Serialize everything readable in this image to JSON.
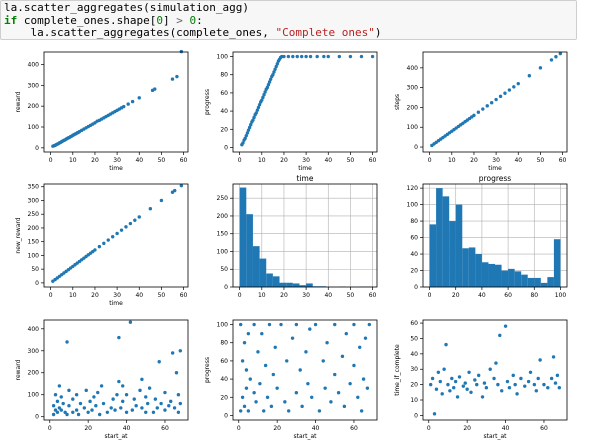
{
  "code": {
    "line1": "la.scatter_aggregates(simulation_agg)",
    "line2_kw": "if",
    "line2_a": " complete_ones.shape[",
    "line2_num": "0",
    "line2_b": "] ",
    "line2_op": ">",
    "line2_c": " ",
    "line2_num2": "0",
    "line2_d": ":",
    "line3_a": "    la.scatter_aggregates(complete_ones, ",
    "line3_str": "\"Complete ones\"",
    "line3_b": ")"
  },
  "colors": {
    "marker": "#1f77b4",
    "axis": "#000000",
    "grid": "#b0b0b0"
  },
  "chart_data": [
    {
      "type": "scatter",
      "title": "",
      "xlabel": "time",
      "ylabel": "reward",
      "xlim": [
        -3,
        62
      ],
      "ylim": [
        -20,
        460
      ],
      "xticks": [
        0,
        10,
        20,
        30,
        40,
        50,
        60
      ],
      "yticks": [
        0,
        100,
        200,
        300,
        400
      ],
      "x": [
        1,
        1.5,
        2,
        2.5,
        3,
        3.5,
        4,
        4.5,
        5,
        5.5,
        6,
        6.5,
        7,
        7.5,
        8,
        8.5,
        9,
        9.5,
        10,
        10.5,
        11,
        11.5,
        12,
        12.5,
        13,
        14,
        15,
        16,
        17,
        18,
        19,
        20,
        21,
        22,
        23,
        24,
        25,
        26,
        27,
        28,
        29,
        30,
        31,
        32,
        33,
        35,
        37,
        40,
        46,
        47,
        55,
        57,
        59
      ],
      "y": [
        8,
        10,
        12,
        15,
        18,
        20,
        24,
        26,
        30,
        33,
        36,
        38,
        42,
        45,
        48,
        50,
        54,
        56,
        60,
        63,
        66,
        68,
        72,
        74,
        78,
        84,
        90,
        96,
        102,
        108,
        114,
        120,
        128,
        132,
        138,
        144,
        150,
        156,
        162,
        168,
        174,
        180,
        186,
        192,
        198,
        210,
        222,
        240,
        276,
        282,
        330,
        342,
        462
      ]
    },
    {
      "type": "scatter",
      "title": "",
      "xlabel": "time",
      "ylabel": "progress",
      "xlim": [
        -3,
        62
      ],
      "ylim": [
        -5,
        105
      ],
      "xticks": [
        0,
        10,
        20,
        30,
        40,
        50,
        60
      ],
      "yticks": [
        0,
        20,
        40,
        60,
        80,
        100
      ],
      "x": [
        1,
        1.5,
        2,
        2.5,
        3,
        3.5,
        4,
        4.5,
        5,
        5.5,
        6,
        6.5,
        7,
        7.5,
        8,
        8.5,
        9,
        9.5,
        10,
        10.5,
        11,
        11.5,
        12,
        12.5,
        13,
        13.5,
        14,
        14.5,
        15,
        15.5,
        16,
        16.5,
        17,
        17.5,
        18,
        18.5,
        19,
        20,
        22,
        24,
        26,
        28,
        30,
        32,
        35,
        38,
        40,
        45,
        50,
        55,
        60
      ],
      "y": [
        3,
        5,
        8,
        10,
        13,
        16,
        19,
        22,
        25,
        28,
        30,
        33,
        36,
        38,
        41,
        44,
        47,
        50,
        52,
        55,
        58,
        61,
        64,
        66,
        69,
        72,
        75,
        78,
        80,
        83,
        86,
        89,
        92,
        95,
        97,
        99,
        100,
        100,
        100,
        100,
        100,
        100,
        100,
        100,
        100,
        100,
        100,
        100,
        100,
        100,
        100
      ]
    },
    {
      "type": "scatter",
      "title": "",
      "xlabel": "time",
      "ylabel": "steps",
      "xlim": [
        -3,
        62
      ],
      "ylim": [
        -25,
        480
      ],
      "xticks": [
        0,
        10,
        20,
        30,
        40,
        50,
        60
      ],
      "yticks": [
        0,
        100,
        200,
        300,
        400
      ],
      "x": [
        1,
        2,
        3,
        4,
        5,
        6,
        7,
        8,
        9,
        10,
        11,
        12,
        13,
        14,
        15,
        16,
        17,
        18,
        19,
        20,
        22,
        24,
        26,
        28,
        30,
        32,
        34,
        36,
        38,
        40,
        45,
        50,
        55,
        57,
        59
      ],
      "y": [
        8,
        16,
        24,
        32,
        40,
        48,
        56,
        64,
        72,
        80,
        88,
        96,
        104,
        112,
        120,
        128,
        136,
        144,
        152,
        160,
        176,
        192,
        208,
        224,
        240,
        256,
        272,
        288,
        304,
        320,
        360,
        400,
        440,
        456,
        472
      ]
    },
    {
      "type": "scatter",
      "title": "",
      "xlabel": "time",
      "ylabel": "new_reward",
      "xlim": [
        -3,
        62
      ],
      "ylim": [
        -15,
        360
      ],
      "xticks": [
        0,
        10,
        20,
        30,
        40,
        50,
        60
      ],
      "yticks": [
        0,
        50,
        100,
        150,
        200,
        250,
        300,
        350
      ],
      "x": [
        1,
        2,
        3,
        4,
        5,
        6,
        7,
        8,
        9,
        10,
        11,
        12,
        13,
        14,
        15,
        16,
        17,
        18,
        19,
        20,
        22,
        24,
        26,
        28,
        30,
        32,
        34,
        36,
        38,
        40,
        45,
        50,
        55,
        56,
        59
      ],
      "y": [
        6,
        12,
        18,
        24,
        30,
        36,
        42,
        48,
        54,
        60,
        66,
        72,
        78,
        84,
        90,
        96,
        102,
        108,
        114,
        120,
        132,
        144,
        156,
        168,
        180,
        192,
        204,
        216,
        228,
        240,
        270,
        300,
        330,
        336,
        354
      ]
    },
    {
      "type": "bar",
      "title": "time",
      "xlabel": "",
      "ylabel": "",
      "xlim": [
        -3,
        62
      ],
      "ylim": [
        0,
        290
      ],
      "xticks": [
        0,
        10,
        20,
        30,
        40,
        50,
        60
      ],
      "yticks": [
        0,
        50,
        100,
        150,
        200,
        250
      ],
      "bin_edges": [
        0,
        3,
        6,
        9,
        12,
        15,
        18,
        21,
        24,
        27,
        30,
        33,
        36,
        39,
        42,
        45,
        48,
        51,
        54,
        57,
        60
      ],
      "values": [
        280,
        205,
        115,
        80,
        38,
        30,
        12,
        12,
        10,
        5,
        10,
        2,
        2,
        0,
        0,
        1,
        0,
        0,
        1,
        1
      ]
    },
    {
      "type": "bar",
      "title": "progress",
      "xlabel": "",
      "ylabel": "",
      "xlim": [
        -5,
        105
      ],
      "ylim": [
        0,
        125
      ],
      "xticks": [
        0,
        20,
        40,
        60,
        80,
        100
      ],
      "yticks": [
        0,
        20,
        40,
        60,
        80,
        100,
        120
      ],
      "bin_edges": [
        0,
        5,
        10,
        15,
        20,
        25,
        30,
        35,
        40,
        45,
        50,
        55,
        60,
        65,
        70,
        75,
        80,
        85,
        90,
        95,
        100
      ],
      "values": [
        76,
        120,
        110,
        80,
        100,
        47,
        48,
        40,
        30,
        28,
        27,
        20,
        22,
        19,
        15,
        11,
        11,
        5,
        12,
        58
      ]
    },
    {
      "type": "scatter",
      "title": "",
      "xlabel": "start_at",
      "ylabel": "reward",
      "xlim": [
        -3,
        72
      ],
      "ylim": [
        -15,
        440
      ],
      "xticks": [
        0,
        20,
        40,
        60
      ],
      "yticks": [
        0,
        100,
        200,
        300,
        400
      ],
      "x": [
        2,
        2,
        3,
        3,
        4,
        4,
        5,
        5,
        6,
        6,
        7,
        8,
        9,
        9,
        10,
        10,
        12,
        12,
        14,
        14,
        15,
        16,
        18,
        19,
        20,
        21,
        22,
        23,
        24,
        25,
        26,
        27,
        28,
        30,
        32,
        33,
        34,
        35,
        36,
        36,
        37,
        38,
        38,
        40,
        40,
        42,
        43,
        44,
        45,
        47,
        48,
        48,
        50,
        50,
        51,
        52,
        54,
        55,
        56,
        57,
        58,
        60,
        60,
        62,
        63,
        64,
        65,
        66,
        67,
        67,
        68,
        68
      ],
      "y": [
        10,
        50,
        30,
        100,
        20,
        70,
        140,
        40,
        30,
        90,
        60,
        20,
        10,
        340,
        50,
        120,
        20,
        80,
        30,
        100,
        10,
        60,
        40,
        120,
        20,
        70,
        30,
        90,
        50,
        110,
        10,
        140,
        60,
        20,
        40,
        80,
        30,
        100,
        160,
        360,
        40,
        140,
        70,
        20,
        100,
        430,
        30,
        80,
        50,
        120,
        40,
        170,
        20,
        90,
        60,
        130,
        20,
        80,
        40,
        250,
        60,
        30,
        110,
        50,
        70,
        290,
        40,
        200,
        20,
        100,
        300,
        60
      ]
    },
    {
      "type": "scatter",
      "title": "",
      "xlabel": "start_at",
      "ylabel": "progress",
      "xlim": [
        -3,
        72
      ],
      "ylim": [
        -5,
        105
      ],
      "xticks": [
        0,
        20,
        40,
        60
      ],
      "yticks": [
        0,
        20,
        40,
        60,
        80,
        100
      ],
      "x": [
        1,
        1,
        2,
        2,
        3,
        3,
        4,
        4,
        5,
        5,
        6,
        8,
        8,
        9,
        10,
        11,
        12,
        13,
        14,
        15,
        16,
        17,
        18,
        19,
        20,
        22,
        24,
        25,
        26,
        28,
        30,
        30,
        32,
        33,
        35,
        36,
        37,
        38,
        40,
        42,
        44,
        45,
        46,
        48,
        50,
        50,
        52,
        54,
        55,
        56,
        58,
        60,
        60,
        62,
        63,
        64,
        65,
        66,
        67,
        68
      ],
      "y": [
        5,
        100,
        20,
        60,
        10,
        80,
        30,
        50,
        5,
        90,
        40,
        25,
        100,
        15,
        70,
        35,
        90,
        5,
        55,
        20,
        100,
        10,
        45,
        75,
        30,
        100,
        15,
        60,
        5,
        85,
        25,
        100,
        50,
        10,
        70,
        35,
        95,
        20,
        100,
        5,
        60,
        30,
        80,
        15,
        45,
        100,
        25,
        65,
        10,
        90,
        35,
        55,
        100,
        20,
        75,
        5,
        40,
        85,
        30,
        100
      ]
    },
    {
      "type": "scatter",
      "title": "",
      "xlabel": "start_at",
      "ylabel": "time_if_complete",
      "xlim": [
        -3,
        72
      ],
      "ylim": [
        -3,
        62
      ],
      "xticks": [
        0,
        20,
        40,
        60
      ],
      "yticks": [
        0,
        10,
        20,
        30,
        40,
        50,
        60
      ],
      "x": [
        1,
        2,
        3,
        4,
        5,
        6,
        7,
        8,
        9,
        10,
        11,
        12,
        13,
        14,
        15,
        16,
        18,
        19,
        20,
        21,
        22,
        24,
        25,
        26,
        28,
        29,
        30,
        32,
        34,
        35,
        36,
        37,
        38,
        40,
        41,
        42,
        44,
        45,
        46,
        48,
        50,
        52,
        53,
        55,
        56,
        57,
        58,
        60,
        62,
        64,
        65,
        66,
        67,
        68
      ],
      "y": [
        20,
        24,
        1,
        17,
        28,
        22,
        14,
        30,
        46,
        20,
        16,
        24,
        18,
        22,
        12,
        25,
        19,
        21,
        17,
        28,
        15,
        23,
        20,
        26,
        12,
        21,
        18,
        30,
        24,
        34,
        20,
        52,
        16,
        58,
        22,
        18,
        26,
        20,
        14,
        24,
        19,
        22,
        28,
        20,
        16,
        24,
        36,
        20,
        18,
        24,
        38,
        21,
        26,
        18
      ]
    }
  ]
}
